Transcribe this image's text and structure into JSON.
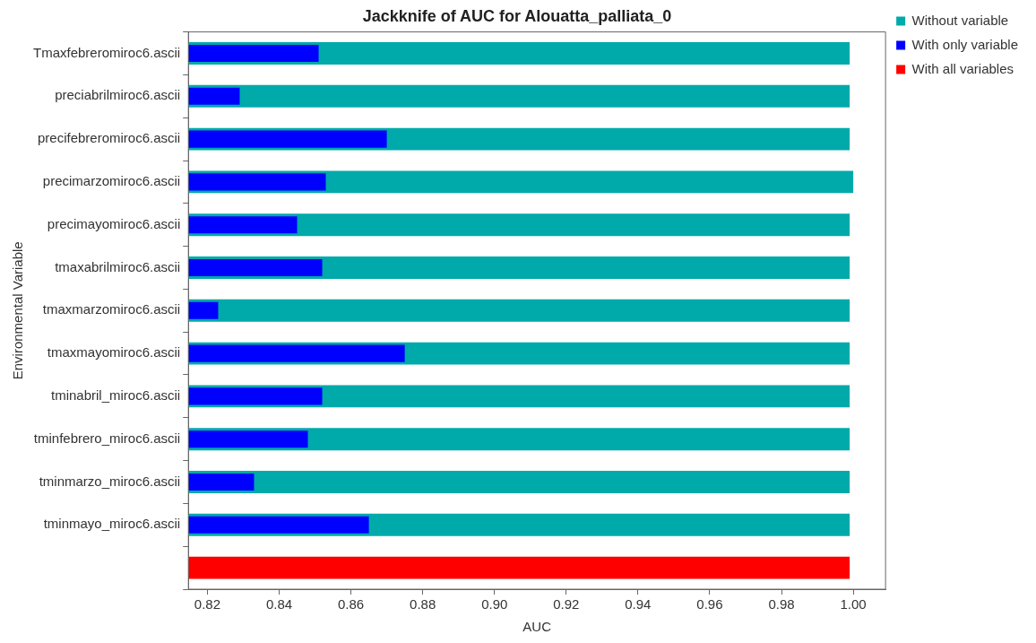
{
  "chart_data": {
    "type": "bar",
    "orientation": "horizontal",
    "title": "Jackknife of AUC for Alouatta_palliata_0",
    "xlabel": "AUC",
    "ylabel": "Environmental Variable",
    "categories": [
      "Tmaxfebreromiroc6.ascii",
      "preciabrilmiroc6.ascii",
      "precifebreromiroc6.ascii",
      "precimarzomiroc6.ascii",
      "precimayomiroc6.ascii",
      "tmaxabrilmiroc6.ascii",
      "tmaxmarzomiroc6.ascii",
      "tmaxmayomiroc6.ascii",
      "tminabril_miroc6.ascii",
      "tminfebrero_miroc6.ascii",
      "tminmarzo_miroc6.ascii",
      "tminmayo_miroc6.ascii",
      null
    ],
    "series": [
      {
        "name": "Without variable",
        "color": "#00aaaa",
        "values": [
          0.999,
          0.999,
          0.999,
          1.0,
          0.999,
          0.999,
          0.999,
          0.999,
          0.999,
          0.999,
          0.999,
          0.999,
          null
        ]
      },
      {
        "name": "With only variable",
        "color": "#0000ff",
        "values": [
          0.851,
          0.829,
          0.87,
          0.853,
          0.845,
          0.852,
          0.823,
          0.875,
          0.852,
          0.848,
          0.833,
          0.865,
          null
        ]
      },
      {
        "name": "With all variables",
        "color": "#ff0000",
        "values": [
          null,
          null,
          null,
          null,
          null,
          null,
          null,
          null,
          null,
          null,
          null,
          null,
          0.999
        ]
      }
    ],
    "xlim": [
      0.8147,
      1.009
    ],
    "xticks": [
      0.82,
      0.84,
      0.86,
      0.88,
      {
        "value": 0.9,
        "label": "0.90"
      },
      0.92,
      0.94,
      0.96,
      0.98,
      {
        "value": 1.0,
        "label": "1.00"
      }
    ],
    "grid": false,
    "legend": "top right"
  }
}
